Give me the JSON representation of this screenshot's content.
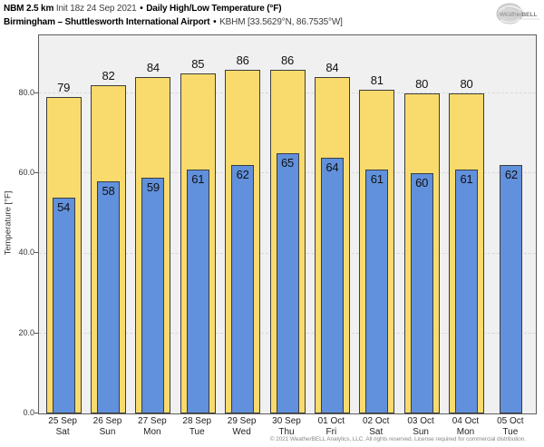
{
  "header": {
    "model_bold": "NBM 2.5 km",
    "init_regular": "Init 18z 24 Sep 2021",
    "sep1": "•",
    "chart_title_bold": "Daily High/Low Temperature (°F)",
    "station_bold": "Birmingham – Shuttlesworth International Airport",
    "sep2": "•",
    "station_regular": "KBHM [33.5629°N, 86.7535°W]"
  },
  "logo": {
    "brand_weather": "Weather",
    "brand_bell": "BELL"
  },
  "chart_data": {
    "type": "bar",
    "title": "Daily High/Low Temperature (°F)",
    "ylabel": "Temperature [°F]",
    "ylim": [
      0,
      94.5
    ],
    "yticks": [
      0,
      20,
      40,
      60,
      80
    ],
    "ytick_labels": [
      "0.0",
      "20.0",
      "40.0",
      "60.0",
      "80.0"
    ],
    "grid": "horizontal-dashed",
    "legend_position": "none",
    "categories_dates": [
      "25 Sep",
      "26 Sep",
      "27 Sep",
      "28 Sep",
      "29 Sep",
      "30 Sep",
      "01 Oct",
      "02 Oct",
      "03 Oct",
      "04 Oct",
      "05 Oct"
    ],
    "categories_days": [
      "Sat",
      "Sun",
      "Mon",
      "Tue",
      "Wed",
      "Thu",
      "Fri",
      "Sat",
      "Sun",
      "Mon",
      "Tue"
    ],
    "series": [
      {
        "name": "High",
        "color": "#f9db6d",
        "values": [
          79,
          82,
          84,
          85,
          86,
          86,
          84,
          81,
          80,
          80,
          null
        ]
      },
      {
        "name": "Low",
        "color": "#6190dc",
        "values": [
          54,
          58,
          59,
          61,
          62,
          65,
          64,
          61,
          60,
          61,
          62
        ]
      }
    ]
  },
  "colors": {
    "high_bar": "#f9db6d",
    "low_bar": "#6190dc",
    "bar_border": "#3d3d3d",
    "plot_background": "#f0f0f0",
    "gridline": "#d8d8d8",
    "axis_border": "#5e5e5e"
  },
  "footer": {
    "copyright": "© 2021 WeatherBELL Analytics, LLC. All rights reserved. License required for commercial distribution."
  }
}
